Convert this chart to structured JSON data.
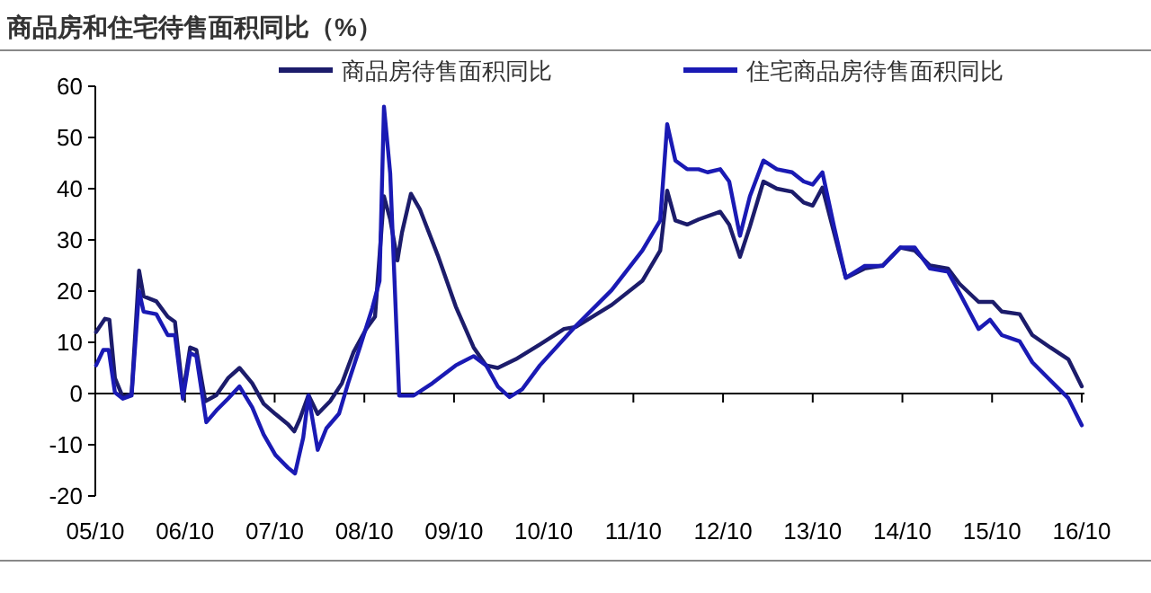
{
  "chart_data": {
    "type": "line",
    "title": "商品房和住宅待售面积同比（%）",
    "xlim": [
      "2005-10",
      "2016-10-12"
    ],
    "ylim": [
      -20,
      60
    ],
    "xticks": [
      {
        "value": "2005-10",
        "label": "05/10"
      },
      {
        "value": "2006-10",
        "label": "06/10"
      },
      {
        "value": "2007-10",
        "label": "07/10"
      },
      {
        "value": "2008-10",
        "label": "08/10"
      },
      {
        "value": "2009-10",
        "label": "09/10"
      },
      {
        "value": "2010-10",
        "label": "10/10"
      },
      {
        "value": "2011-10",
        "label": "11/10"
      },
      {
        "value": "2012-10",
        "label": "12/10"
      },
      {
        "value": "2013-10",
        "label": "13/10"
      },
      {
        "value": "2014-10",
        "label": "14/10"
      },
      {
        "value": "2015-10",
        "label": "15/10"
      },
      {
        "value": "2016-10",
        "label": "16/10"
      }
    ],
    "yticks": [
      -20,
      -10,
      0,
      10,
      20,
      30,
      40,
      50,
      60
    ],
    "ref_lines": [
      {
        "axis": "y",
        "value": 0,
        "color": "#000000",
        "line_style": "solid"
      }
    ],
    "grid": false,
    "legend": "top",
    "marker": "none",
    "line_style": "solid",
    "series": [
      {
        "name": "商品房待售面积同比",
        "color": "#1c1c6b",
        "x": [
          "2005-10-04",
          "2005-11-10",
          "2005-11-28",
          "2005-12-20",
          "2006-01-22",
          "2006-02-27",
          "2006-03-27",
          "2006-04-15",
          "2006-06-06",
          "2006-07-22",
          "2006-08-21",
          "2006-09-23",
          "2006-10-22",
          "2006-11-17",
          "2006-12-23",
          "2007-02-07",
          "2007-03-24",
          "2007-05-10",
          "2007-07-01",
          "2007-08-17",
          "2007-10-04",
          "2007-11-25",
          "2007-12-20",
          "2008-01-12",
          "2008-02-17",
          "2008-03-24",
          "2008-05-14",
          "2008-07-01",
          "2008-08-17",
          "2008-10-08",
          "2008-11-14",
          "2008-12-20",
          "2009-01-15",
          "2009-02-14",
          "2009-03-02",
          "2009-04-08",
          "2009-05-14",
          "2009-07-26",
          "2009-10-08",
          "2009-12-20",
          "2010-02-10",
          "2010-03-27",
          "2010-06-09",
          "2010-09-16",
          "2010-12-23",
          "2011-02-10",
          "2011-07-04",
          "2011-11-07",
          "2012-01-19",
          "2012-02-17",
          "2012-03-20",
          "2012-05-07",
          "2012-06-23",
          "2012-09-20",
          "2012-10-26",
          "2012-12-09",
          "2013-01-19",
          "2013-03-13",
          "2013-05-07",
          "2013-07-08",
          "2013-08-25",
          "2013-10-01",
          "2013-11-10",
          "2013-12-27",
          "2014-02-14",
          "2014-04-29",
          "2014-07-12",
          "2014-09-23",
          "2014-11-21",
          "2015-01-22",
          "2015-04-04",
          "2015-05-21",
          "2015-08-07",
          "2015-10-04",
          "2015-11-10",
          "2016-01-22",
          "2016-03-13",
          "2016-05-25",
          "2016-08-07",
          "2016-10-01"
        ],
        "values": [
          12,
          14.6,
          14.4,
          3,
          -0.7,
          0,
          24,
          19,
          18,
          15,
          14,
          0,
          9,
          8.5,
          -1.5,
          -0.3,
          3,
          5,
          2,
          -2,
          -4,
          -6,
          -7.4,
          -5,
          -0.3,
          -4,
          -1.5,
          2,
          8,
          12.6,
          15,
          38.5,
          34,
          26,
          31.4,
          39,
          36,
          27,
          17,
          9,
          5.5,
          5,
          6.7,
          9.6,
          12.6,
          13,
          17.3,
          22,
          27.9,
          39.6,
          33.8,
          33,
          34,
          35.5,
          33,
          26.7,
          32.6,
          41.4,
          40,
          39.4,
          37.3,
          36.7,
          40.2,
          31.4,
          22.6,
          24.4,
          25,
          28.5,
          27.9,
          25,
          24.4,
          21.4,
          17.9,
          17.9,
          16,
          15.5,
          11.4,
          9,
          6.7,
          1.4
        ]
      },
      {
        "name": "住宅商品房待售面积同比",
        "color": "#1a1ab4",
        "x": [
          "2005-10-04",
          "2005-11-03",
          "2005-11-25",
          "2005-12-20",
          "2006-01-22",
          "2006-02-27",
          "2006-03-27",
          "2006-04-15",
          "2006-06-06",
          "2006-07-22",
          "2006-08-21",
          "2006-09-23",
          "2006-10-22",
          "2006-11-17",
          "2006-12-27",
          "2007-02-07",
          "2007-03-24",
          "2007-05-10",
          "2007-07-01",
          "2007-08-17",
          "2007-10-04",
          "2007-11-25",
          "2007-12-23",
          "2008-01-26",
          "2008-02-17",
          "2008-03-24",
          "2008-04-29",
          "2008-06-20",
          "2008-07-26",
          "2008-09-13",
          "2008-11-03",
          "2008-12-02",
          "2008-12-20",
          "2009-01-15",
          "2009-02-21",
          "2009-04-19",
          "2009-07-04",
          "2009-10-08",
          "2009-12-20",
          "2010-02-10",
          "2010-03-27",
          "2010-05-14",
          "2010-07-04",
          "2010-09-16",
          "2011-02-10",
          "2011-07-04",
          "2011-11-07",
          "2012-01-19",
          "2012-02-17",
          "2012-03-20",
          "2012-05-07",
          "2012-06-23",
          "2012-07-29",
          "2012-09-20",
          "2012-10-26",
          "2012-12-09",
          "2013-01-19",
          "2013-03-13",
          "2013-05-07",
          "2013-07-08",
          "2013-08-25",
          "2013-10-01",
          "2013-11-10",
          "2013-12-27",
          "2014-02-14",
          "2014-04-29",
          "2014-07-12",
          "2014-09-23",
          "2014-11-21",
          "2015-01-22",
          "2015-04-04",
          "2015-05-21",
          "2015-08-07",
          "2015-09-23",
          "2015-11-10",
          "2016-01-22",
          "2016-03-13",
          "2016-05-25",
          "2016-08-07",
          "2016-10-01"
        ],
        "values": [
          5.5,
          8.5,
          8.5,
          0.2,
          -1,
          -0.4,
          20,
          16,
          15.5,
          11.4,
          11.4,
          -1,
          7.9,
          7.3,
          -5.6,
          -3.3,
          -1,
          1.4,
          -2.7,
          -8,
          -12,
          -14.5,
          -15.6,
          -8.6,
          -0.4,
          -11,
          -6.8,
          -3.9,
          2,
          9,
          16.7,
          22,
          56,
          43,
          -0.4,
          -0.4,
          2,
          5.5,
          7.3,
          5.5,
          1.4,
          -0.7,
          0.8,
          5.5,
          13.2,
          20.2,
          27.9,
          33.8,
          52.6,
          45.5,
          43.8,
          43.8,
          43.2,
          43.8,
          41.4,
          30.8,
          38.5,
          45.5,
          43.8,
          43.2,
          41.4,
          40.8,
          43.2,
          32.6,
          22.6,
          24.9,
          24.9,
          28.5,
          28.5,
          24.4,
          23.8,
          19.6,
          12.6,
          14.4,
          11.4,
          10.2,
          6.1,
          2.6,
          -0.9,
          -6.2
        ]
      }
    ]
  }
}
